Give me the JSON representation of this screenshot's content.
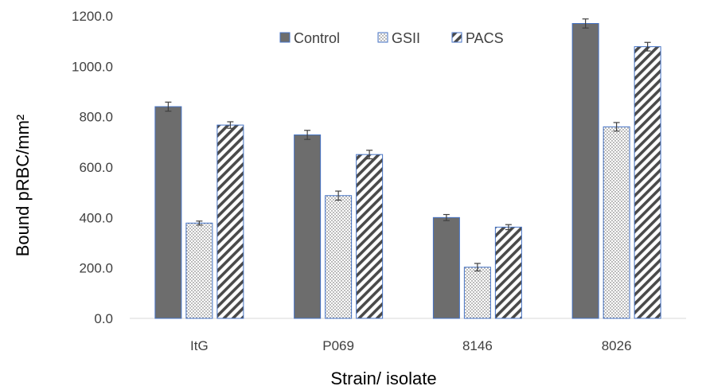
{
  "chart_data": {
    "type": "bar",
    "title": "",
    "xlabel": "Strain/ isolate",
    "ylabel": "Bound pRBC/mm²",
    "ylim": [
      0,
      1200
    ],
    "yticks": [
      "0.0",
      "200.0",
      "400.0",
      "600.0",
      "800.0",
      "1000.0",
      "1200.0"
    ],
    "ytick_values": [
      0,
      200,
      400,
      600,
      800,
      1000,
      1200
    ],
    "categories": [
      "ItG",
      "P069",
      "8146",
      "8026"
    ],
    "series": [
      {
        "name": "Control",
        "values": [
          840,
          728,
          400,
          1170
        ],
        "errors": [
          18,
          18,
          12,
          18
        ],
        "color": "#6d6d6d",
        "pattern": "solid"
      },
      {
        "name": "GSII",
        "values": [
          378,
          487,
          203,
          760
        ],
        "errors": [
          8,
          18,
          15,
          17
        ],
        "color": "#dcdcdc",
        "pattern": "dots"
      },
      {
        "name": "PACS",
        "values": [
          767,
          650,
          362,
          1078
        ],
        "errors": [
          13,
          17,
          10,
          17
        ],
        "color": "#4a4a4a",
        "pattern": "diagonal"
      }
    ],
    "legend_position": "top-center",
    "grid": false,
    "bar_outline_color": "#4472c4"
  }
}
